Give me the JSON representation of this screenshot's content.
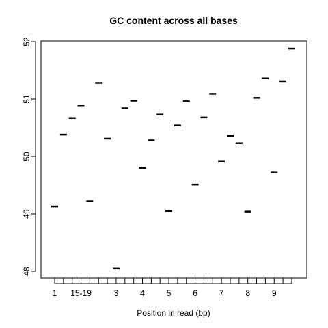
{
  "chart_data": {
    "type": "scatter",
    "title": "GC content across all bases",
    "xlabel": "Position in read (bp)",
    "ylabel": "",
    "ylim": [
      48,
      52
    ],
    "yticks": [
      48,
      49,
      50,
      51,
      52
    ],
    "xlim": [
      0.5,
      28.5
    ],
    "x_tick_count": 28,
    "x_tick_labels": [
      {
        "x": 1,
        "label": "1"
      },
      {
        "x": 4,
        "label": "15-19"
      },
      {
        "x": 8,
        "label": "3"
      },
      {
        "x": 11,
        "label": "4"
      },
      {
        "x": 14,
        "label": "5"
      },
      {
        "x": 17,
        "label": "6"
      },
      {
        "x": 20,
        "label": "7"
      },
      {
        "x": 23,
        "label": "8"
      },
      {
        "x": 26,
        "label": "9"
      }
    ],
    "grid": false,
    "marker": "horizontal-dash",
    "series": [
      {
        "x": [
          1,
          2,
          3,
          4,
          5,
          6,
          7,
          8,
          9,
          10,
          11,
          12,
          13,
          14,
          15,
          16,
          17,
          18,
          19,
          20,
          21,
          22,
          23,
          24,
          25,
          26,
          27,
          28
        ],
        "values": [
          49.13,
          50.38,
          50.67,
          50.89,
          49.22,
          51.28,
          50.31,
          48.05,
          50.84,
          50.97,
          49.8,
          50.28,
          50.73,
          49.05,
          50.54,
          50.96,
          49.51,
          50.68,
          51.09,
          49.92,
          50.36,
          50.23,
          49.04,
          51.02,
          51.36,
          49.73,
          51.31,
          51.88
        ]
      }
    ]
  }
}
